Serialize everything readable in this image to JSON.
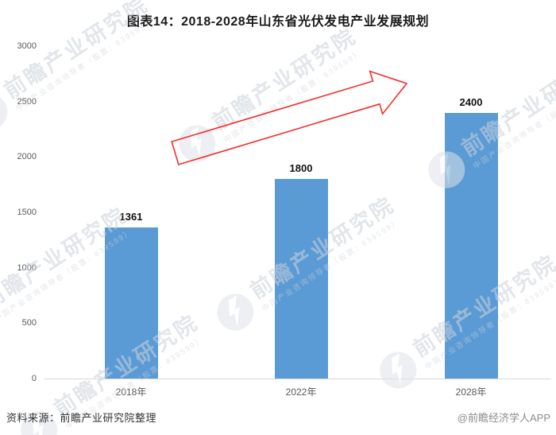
{
  "title": "图表14：2018-2028年山东省光伏发电产业发展规划",
  "chart_data": {
    "type": "bar",
    "title": "图表14：2018-2028年山东省光伏发电产业发展规划",
    "categories": [
      "2018年",
      "2022年",
      "2028年"
    ],
    "values": [
      1361,
      1800,
      2400
    ],
    "value_labels": [
      "1361",
      "1800",
      "2400"
    ],
    "xlabel": "",
    "ylabel": "",
    "ylim": [
      0,
      3000
    ],
    "yticks": [
      0,
      500,
      1000,
      1500,
      2000,
      2500,
      3000
    ],
    "grid": false,
    "legend": "none",
    "bar_color": "#5B9BD5",
    "annotation": "red outlined block arrow rising from above the 2018 bar toward the 2028 bar"
  },
  "footer": {
    "source": "资料来源：前瞻产业研究院整理",
    "credit": "@前瞻经济学人APP"
  },
  "watermark": {
    "brand": "前瞻产业研究院",
    "tagline": "中国产业咨询领导者（股票：839599）"
  },
  "colors": {
    "bar": "#5B9BD5",
    "arrow": "#F92C2C",
    "axis_line": "#D9D9D9",
    "tick_text": "#595959",
    "title_text": "#1A1A1A",
    "value_text": "#111111",
    "source_text": "#333333",
    "credit_text": "#8C8C8C",
    "watermark_text": "#CCD2D9"
  }
}
